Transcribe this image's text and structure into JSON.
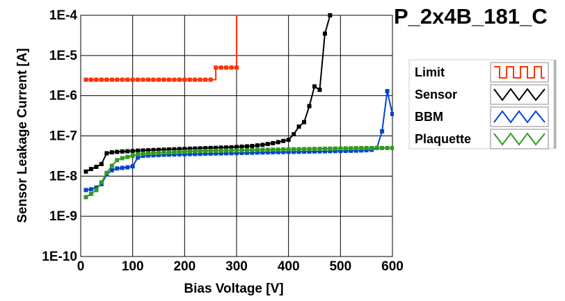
{
  "chart_data": {
    "type": "line",
    "title": "P_2x4B_181_C",
    "xlabel": "Bias Voltage [V]",
    "ylabel": "Sensor Leakage Current [A]",
    "x_ticks": [
      0,
      100,
      200,
      300,
      400,
      500,
      600
    ],
    "x_tick_labels": [
      "0",
      "100",
      "200",
      "300",
      "400",
      "500",
      "600"
    ],
    "y_ticks": [
      1e-10,
      1e-09,
      1e-08,
      1e-07,
      1e-06,
      1e-05,
      0.0001
    ],
    "y_tick_labels": [
      "1E-10",
      "1E-9",
      "1E-8",
      "1E-7",
      "1E-6",
      "1E-5",
      "1E-4"
    ],
    "xlim": [
      0,
      600
    ],
    "ylim": [
      1e-10,
      0.0001
    ],
    "y_scale": "log",
    "grid": true,
    "legend_position": "right",
    "series": [
      {
        "name": "Limit",
        "color": "#ff3300",
        "step": true,
        "x": [
          10,
          20,
          30,
          40,
          50,
          60,
          70,
          80,
          90,
          100,
          110,
          120,
          130,
          140,
          150,
          160,
          170,
          180,
          190,
          200,
          210,
          220,
          230,
          240,
          250,
          260,
          270,
          280,
          290,
          300
        ],
        "y": [
          2.5e-06,
          2.5e-06,
          2.5e-06,
          2.5e-06,
          2.5e-06,
          2.5e-06,
          2.5e-06,
          2.5e-06,
          2.5e-06,
          2.5e-06,
          2.5e-06,
          2.5e-06,
          2.5e-06,
          2.5e-06,
          2.5e-06,
          2.5e-06,
          2.5e-06,
          2.5e-06,
          2.5e-06,
          2.5e-06,
          2.5e-06,
          2.5e-06,
          2.5e-06,
          2.5e-06,
          2.5e-06,
          5e-06,
          5e-06,
          5e-06,
          5e-06,
          5e-06
        ],
        "tail_to": 0.0001
      },
      {
        "name": "Sensor",
        "color": "#000000",
        "step": false,
        "x": [
          10,
          20,
          30,
          40,
          50,
          60,
          70,
          80,
          90,
          100,
          110,
          120,
          130,
          140,
          150,
          160,
          170,
          180,
          190,
          200,
          210,
          220,
          230,
          240,
          250,
          260,
          270,
          280,
          290,
          300,
          310,
          320,
          330,
          340,
          350,
          360,
          370,
          380,
          390,
          400,
          410,
          420,
          430,
          440,
          450,
          460,
          470,
          480
        ],
        "y": [
          1.3e-08,
          1.5e-08,
          1.7e-08,
          2e-08,
          3.7e-08,
          3.9e-08,
          4e-08,
          4.1e-08,
          4.15e-08,
          4.2e-08,
          4.3e-08,
          4.35e-08,
          4.4e-08,
          4.45e-08,
          4.5e-08,
          4.55e-08,
          4.6e-08,
          4.65e-08,
          4.7e-08,
          4.75e-08,
          4.8e-08,
          4.85e-08,
          4.9e-08,
          4.95e-08,
          5e-08,
          5.05e-08,
          5.1e-08,
          5.15e-08,
          5.2e-08,
          5.3e-08,
          5.4e-08,
          5.5e-08,
          5.6e-08,
          5.8e-08,
          6e-08,
          6.3e-08,
          6.6e-08,
          7e-08,
          7.5e-08,
          8e-08,
          1.1e-07,
          1.7e-07,
          2.2e-07,
          5.5e-07,
          1.7e-06,
          1.4e-06,
          3.5e-05,
          0.0001
        ]
      },
      {
        "name": "BBM",
        "color": "#0044cc",
        "step": false,
        "x": [
          10,
          20,
          30,
          40,
          50,
          60,
          70,
          80,
          90,
          100,
          110,
          120,
          130,
          140,
          150,
          160,
          170,
          180,
          190,
          200,
          210,
          220,
          230,
          240,
          250,
          260,
          270,
          280,
          290,
          300,
          310,
          320,
          330,
          340,
          350,
          360,
          370,
          380,
          390,
          400,
          410,
          420,
          430,
          440,
          450,
          460,
          470,
          480,
          490,
          500,
          510,
          520,
          530,
          540,
          550,
          560,
          570,
          580,
          590,
          600
        ],
        "y": [
          4.5e-09,
          4.7e-09,
          5.2e-09,
          6.3e-09,
          1.1e-08,
          1.4e-08,
          1.55e-08,
          1.6e-08,
          1.65e-08,
          1.75e-08,
          2.9e-08,
          3.2e-08,
          3.25e-08,
          3.3e-08,
          3.35e-08,
          3.4e-08,
          3.42e-08,
          3.45e-08,
          3.47e-08,
          3.5e-08,
          3.52e-08,
          3.55e-08,
          3.57e-08,
          3.6e-08,
          3.62e-08,
          3.65e-08,
          3.67e-08,
          3.7e-08,
          3.72e-08,
          3.75e-08,
          3.77e-08,
          3.8e-08,
          3.82e-08,
          3.85e-08,
          3.87e-08,
          3.9e-08,
          3.92e-08,
          3.95e-08,
          3.97e-08,
          4e-08,
          4e-08,
          4.02e-08,
          4.05e-08,
          4.07e-08,
          4.1e-08,
          4.12e-08,
          4.15e-08,
          4.17e-08,
          4.2e-08,
          4.22e-08,
          4.25e-08,
          4.27e-08,
          4.3e-08,
          4.35e-08,
          4.4e-08,
          4.5e-08,
          5e-08,
          1.3e-07,
          1.3e-06,
          3.5e-07
        ]
      },
      {
        "name": "Plaquette",
        "color": "#339922",
        "step": false,
        "x": [
          10,
          20,
          30,
          40,
          50,
          60,
          70,
          80,
          90,
          100,
          110,
          120,
          130,
          140,
          150,
          160,
          170,
          180,
          190,
          200,
          210,
          220,
          230,
          240,
          250,
          260,
          270,
          280,
          290,
          300,
          310,
          320,
          330,
          340,
          350,
          360,
          370,
          380,
          390,
          400,
          410,
          420,
          430,
          440,
          450,
          460,
          470,
          480,
          490,
          500,
          510,
          520,
          530,
          540,
          550,
          560,
          570,
          580,
          590,
          600
        ],
        "y": [
          3e-09,
          3.6e-09,
          4.5e-09,
          7e-09,
          1.2e-08,
          1.8e-08,
          2.5e-08,
          2.8e-08,
          3e-08,
          3.2e-08,
          3.5e-08,
          3.6e-08,
          3.7e-08,
          3.75e-08,
          3.8e-08,
          3.85e-08,
          3.9e-08,
          3.95e-08,
          4e-08,
          4.05e-08,
          4.1e-08,
          4.15e-08,
          4.2e-08,
          4.22e-08,
          4.25e-08,
          4.27e-08,
          4.3e-08,
          4.32e-08,
          4.35e-08,
          4.37e-08,
          4.4e-08,
          4.42e-08,
          4.45e-08,
          4.47e-08,
          4.5e-08,
          4.52e-08,
          4.55e-08,
          4.57e-08,
          4.6e-08,
          4.62e-08,
          4.65e-08,
          4.67e-08,
          4.7e-08,
          4.72e-08,
          4.75e-08,
          4.77e-08,
          4.8e-08,
          4.82e-08,
          4.85e-08,
          4.87e-08,
          4.9e-08,
          4.92e-08,
          4.95e-08,
          4.97e-08,
          5e-08,
          5e-08,
          5e-08,
          5e-08,
          5e-08,
          5e-08
        ]
      }
    ]
  }
}
